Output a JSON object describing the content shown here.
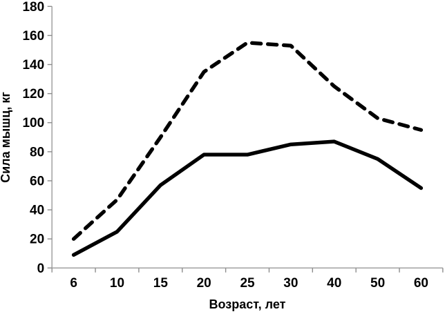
{
  "chart_data": {
    "type": "line",
    "title": "",
    "xlabel": "Возраст, лет",
    "ylabel": "Сила мышц, кг",
    "categories": [
      6,
      10,
      15,
      20,
      25,
      30,
      40,
      50,
      60
    ],
    "series": [
      {
        "name": "dashed-series",
        "style": "dashed",
        "values": [
          20,
          47,
          90,
          135,
          155,
          153,
          125,
          103,
          95
        ]
      },
      {
        "name": "solid-series",
        "style": "solid",
        "values": [
          9,
          25,
          57,
          78,
          78,
          85,
          87,
          75,
          55
        ]
      }
    ],
    "ylim": [
      0,
      180
    ],
    "ytick_step": 20,
    "ytick_labels": [
      "0",
      "20",
      "40",
      "60",
      "80",
      "100",
      "120",
      "140",
      "160",
      "180"
    ],
    "grid": false,
    "legend": false,
    "colors": {
      "line": "#000000",
      "axis": "#a6a6a6",
      "tick": "#8c8c8c",
      "label": "#000000",
      "background": "#ffffff"
    }
  }
}
